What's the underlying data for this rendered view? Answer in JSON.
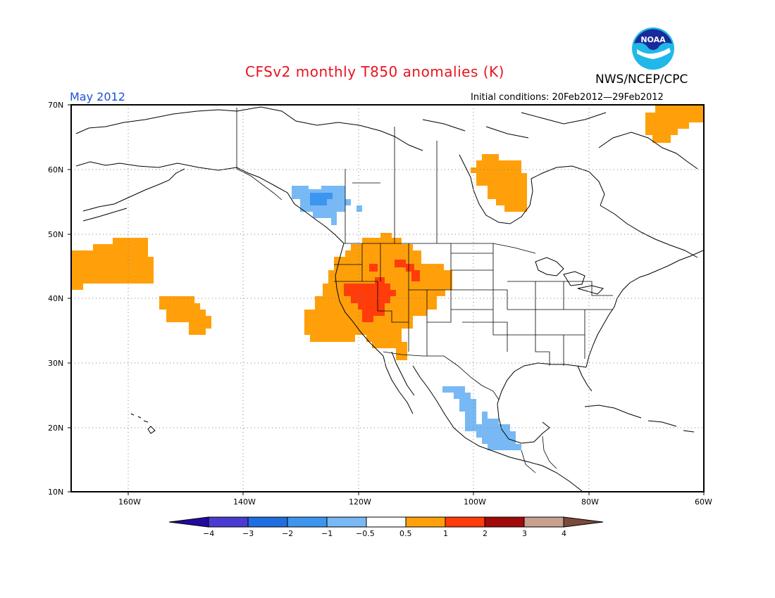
{
  "header": {
    "title": "CFSv2 monthly T850 anomalies (K)",
    "agency": "NWS/NCEP/CPC",
    "period": "May 2012",
    "initial_conditions": "Initial conditions: 20Feb2012—29Feb2012"
  },
  "logo": {
    "icon": "noaa-logo-icon",
    "text": "NOAA"
  },
  "map": {
    "lat_labels": [
      "70N",
      "60N",
      "50N",
      "40N",
      "30N",
      "20N",
      "10N"
    ],
    "lon_labels": [
      "160W",
      "140W",
      "120W",
      "100W",
      "80W",
      "60W"
    ],
    "grid": "dotted"
  },
  "colorbar": {
    "labels": [
      "−4",
      "−3",
      "−2",
      "−1",
      "−0.5",
      "0.5",
      "1",
      "2",
      "3",
      "4"
    ],
    "colors": {
      "below_minus4": "#220aa0",
      "minus4_to_minus3": "#4a3cd0",
      "minus3_to_minus2": "#1e6ee0",
      "minus2_to_minus1": "#3c96f0",
      "minus1_to_minus05": "#78b9f5",
      "neutral": "#ffffff",
      "p05_to_1": "#ffa00a",
      "p1_to_2": "#ff3c0a",
      "p2_to_3": "#a00a0a",
      "p3_to_4": "#c8a090",
      "above_4": "#7a4a3a"
    }
  }
}
